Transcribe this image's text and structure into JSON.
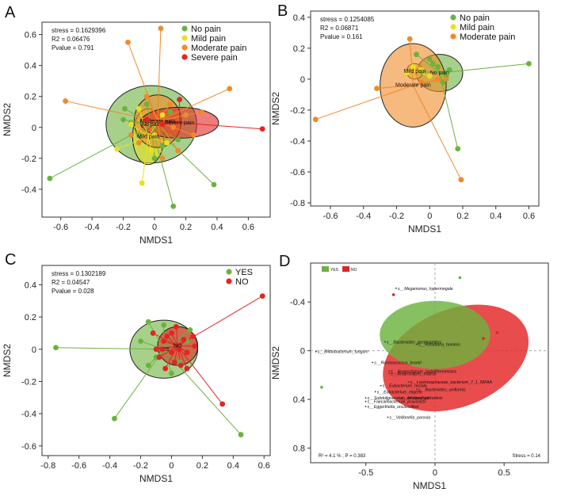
{
  "panels": {
    "A": {
      "letter": "A",
      "xlabel": "NMDS1",
      "ylabel": "NMDS2",
      "xticks": [
        -0.6,
        -0.4,
        -0.2,
        0.0,
        0.2,
        0.4,
        0.6
      ],
      "yticks": [
        -0.4,
        -0.2,
        0.0,
        0.2,
        0.4,
        0.6
      ],
      "xlim": [
        -0.72,
        0.74
      ],
      "ylim": [
        -0.58,
        0.68
      ],
      "stats": [
        "stress = 0.1629396",
        "R2 = 0.06476",
        "Pvalue = 0.791"
      ],
      "groups": [
        {
          "name": "No pain",
          "color": "#6cb23e",
          "center": [
            -0.02,
            0.02
          ],
          "ellipse": {
            "rx": 0.29,
            "ry": 0.25,
            "rot": 0
          },
          "points": [
            [
              -0.67,
              -0.33
            ],
            [
              0.12,
              -0.51
            ],
            [
              0.38,
              -0.37
            ],
            [
              -0.19,
              0.12
            ],
            [
              -0.15,
              0.03
            ],
            [
              -0.1,
              -0.05
            ],
            [
              0.05,
              -0.12
            ],
            [
              0.1,
              0.1
            ],
            [
              -0.05,
              0.15
            ],
            [
              0.15,
              -0.08
            ],
            [
              -0.2,
              0.05
            ],
            [
              0.0,
              -0.2
            ]
          ]
        },
        {
          "name": "Mild pain",
          "color": "#e8e020",
          "center": [
            -0.04,
            -0.06
          ],
          "ellipse": {
            "rx": 0.1,
            "ry": 0.18,
            "rot": 0
          },
          "points": [
            [
              -0.08,
              -0.36
            ],
            [
              -0.24,
              -0.14
            ],
            [
              -0.15,
              0.02
            ],
            [
              -0.1,
              0.12
            ],
            [
              0.0,
              -0.05
            ],
            [
              0.05,
              0.08
            ],
            [
              -0.02,
              -0.15
            ],
            [
              0.08,
              -0.1
            ]
          ]
        },
        {
          "name": "Moderate pain",
          "color": "#f08a28",
          "center": [
            0.02,
            0.04
          ],
          "ellipse": {
            "rx": 0.15,
            "ry": 0.17,
            "rot": 0
          },
          "points": [
            [
              -0.57,
              0.17
            ],
            [
              -0.17,
              0.55
            ],
            [
              0.04,
              0.64
            ],
            [
              0.48,
              0.25
            ],
            [
              -0.1,
              -0.1
            ],
            [
              0.1,
              0.15
            ],
            [
              0.2,
              0.08
            ],
            [
              0.15,
              -0.15
            ],
            [
              -0.05,
              0.2
            ],
            [
              0.25,
              -0.05
            ],
            [
              0.05,
              -0.2
            ],
            [
              -0.15,
              -0.05
            ],
            [
              0.12,
              0.0
            ],
            [
              0.3,
              0.1
            ]
          ]
        },
        {
          "name": "Severe pain",
          "color": "#e32424",
          "center": [
            0.16,
            0.03
          ],
          "ellipse": {
            "rx": 0.25,
            "ry": 0.1,
            "rot": 0
          },
          "points": [
            [
              0.69,
              -0.01
            ],
            [
              0.16,
              0.18
            ],
            [
              0.05,
              0.02
            ],
            [
              -0.05,
              0.05
            ]
          ]
        }
      ]
    },
    "B": {
      "letter": "B",
      "xlabel": "NMDS1",
      "ylabel": "NMDS2",
      "xticks": [
        -0.6,
        -0.4,
        -0.2,
        0.0,
        0.2,
        0.4,
        0.6
      ],
      "yticks": [
        -0.8,
        -0.6,
        -0.4,
        -0.2,
        0.0,
        0.2,
        0.4
      ],
      "xlim": [
        -0.72,
        0.66
      ],
      "ylim": [
        -0.82,
        0.44
      ],
      "stats": [
        "stress = 0.1254085",
        "R2 = 0.06871",
        "Pvalue = 0.161"
      ],
      "groups": [
        {
          "name": "No pain",
          "color": "#6cb23e",
          "center": [
            0.06,
            0.04
          ],
          "ellipse": {
            "rx": 0.14,
            "ry": 0.12,
            "rot": 0
          },
          "points": [
            [
              0.6,
              0.1
            ],
            [
              0.17,
              -0.45
            ],
            [
              -0.08,
              0.16
            ],
            [
              0.0,
              0.13
            ],
            [
              0.05,
              0.08
            ],
            [
              0.1,
              0.02
            ],
            [
              0.12,
              0.06
            ],
            [
              -0.05,
              0.05
            ],
            [
              0.08,
              -0.02
            ],
            [
              0.02,
              0.1
            ]
          ]
        },
        {
          "name": "Mild pain",
          "color": "#e8e020",
          "center": [
            -0.09,
            0.05
          ],
          "ellipse": {
            "rx": 0.05,
            "ry": 0.05,
            "rot": 0
          },
          "points": [
            [
              -0.14,
              0.04
            ],
            [
              -0.05,
              0.06
            ],
            [
              -0.1,
              0.08
            ],
            [
              0.0,
              0.02
            ]
          ]
        },
        {
          "name": "Moderate pain",
          "color": "#f08a28",
          "center": [
            -0.1,
            -0.04
          ],
          "ellipse": {
            "rx": 0.2,
            "ry": 0.27,
            "rot": 0
          },
          "points": [
            [
              -0.69,
              -0.26
            ],
            [
              0.19,
              -0.65
            ],
            [
              -0.12,
              0.26
            ],
            [
              -0.32,
              -0.06
            ],
            [
              0.05,
              0.0
            ],
            [
              0.1,
              0.0
            ],
            [
              -0.05,
              -0.02
            ]
          ]
        }
      ]
    },
    "C": {
      "letter": "C",
      "xlabel": "NMDS1",
      "ylabel": "NMDS2",
      "xticks": [
        -0.8,
        -0.6,
        -0.4,
        -0.2,
        0.0,
        0.2,
        0.4,
        0.6
      ],
      "yticks": [
        -0.6,
        -0.4,
        -0.2,
        0.0,
        0.2,
        0.4
      ],
      "xlim": [
        -0.84,
        0.64
      ],
      "ylim": [
        -0.66,
        0.52
      ],
      "stats": [
        "stress = 0.1302189",
        "R2 = 0.04547",
        "Pvalue = 0.028"
      ],
      "groups": [
        {
          "name": "YES",
          "color": "#6cb23e",
          "center": [
            -0.05,
            0.0
          ],
          "ellipse": {
            "rx": 0.22,
            "ry": 0.18,
            "rot": 0
          },
          "points": [
            [
              -0.75,
              0.01
            ],
            [
              -0.37,
              -0.43
            ],
            [
              0.45,
              -0.53
            ],
            [
              -0.15,
              0.17
            ],
            [
              -0.2,
              0.05
            ],
            [
              -0.1,
              -0.05
            ],
            [
              0.0,
              0.1
            ],
            [
              0.05,
              -0.08
            ],
            [
              -0.15,
              -0.1
            ],
            [
              0.1,
              0.05
            ],
            [
              -0.05,
              0.15
            ],
            [
              0.0,
              -0.15
            ],
            [
              0.12,
              0.12
            ]
          ]
        },
        {
          "name": "NO",
          "color": "#e32424",
          "center": [
            0.04,
            0.02
          ],
          "ellipse": {
            "rx": 0.13,
            "ry": 0.12,
            "rot": 0
          },
          "points": [
            [
              0.59,
              0.33
            ],
            [
              0.33,
              -0.34
            ],
            [
              -0.05,
              0.05
            ],
            [
              0.0,
              -0.02
            ],
            [
              0.05,
              0.0
            ],
            [
              -0.03,
              0.08
            ],
            [
              0.08,
              0.06
            ],
            [
              0.02,
              -0.08
            ],
            [
              -0.08,
              -0.05
            ],
            [
              0.1,
              -0.02
            ],
            [
              0.0,
              0.1
            ],
            [
              -0.1,
              0.0
            ],
            [
              0.06,
              -0.1
            ],
            [
              0.14,
              0.08
            ],
            [
              -0.04,
              -0.12
            ],
            [
              0.15,
              0.02
            ],
            [
              -0.12,
              0.1
            ],
            [
              0.03,
              0.14
            ],
            [
              0.1,
              -0.12
            ],
            [
              -0.06,
              0.0
            ]
          ]
        }
      ]
    },
    "D": {
      "letter": "D",
      "xlabel": "NMDS1",
      "ylabel": "NMDS2",
      "xticks": [
        -0.5,
        0.0,
        0.5
      ],
      "yticks": [
        -0.4,
        0.0,
        0.4,
        0.8
      ],
      "xlim": [
        -0.9,
        0.82
      ],
      "ylim": [
        -0.72,
        0.92
      ],
      "legend": [
        {
          "name": "YES",
          "color": "#6cb23e"
        },
        {
          "name": "NO",
          "color": "#e32424"
        }
      ],
      "stress": "Stress = 0.14",
      "r2": "R² = 4.1 % ; P = 0.383",
      "ellipses": [
        {
          "name": "NO",
          "color": "#e32424",
          "center": [
            0.15,
            0.06
          ],
          "rx": 0.55,
          "ry": 0.4,
          "rot": -22
        },
        {
          "name": "YES",
          "color": "#6cb23e",
          "center": [
            0.0,
            -0.13
          ],
          "rx": 0.4,
          "ry": 0.28,
          "rot": 0
        }
      ],
      "species": [
        {
          "label": "s__Megamonas_hypermegale",
          "x": -0.27,
          "y": -0.5
        },
        {
          "label": "s__Bacteroides_pectinophilus",
          "x": -0.35,
          "y": -0.06
        },
        {
          "label": "s__Roseburia_hominis",
          "x": -0.12,
          "y": -0.04
        },
        {
          "label": "s__Bifidobacterium_longum",
          "x": -0.85,
          "y": 0.02
        },
        {
          "label": "s__Ruminococcus_bromii",
          "x": -0.44,
          "y": 0.11
        },
        {
          "label": "s__Anaerotignum_lactatifermentans",
          "x": -0.32,
          "y": 0.18
        },
        {
          "label": "s__Anaerostipes_hadrus",
          "x": -0.32,
          "y": 0.2
        },
        {
          "label": "s__Lachnospiraceae_bacterium_7_1_58FAA",
          "x": -0.18,
          "y": 0.27
        },
        {
          "label": "s__Eubacterium_rectale",
          "x": -0.38,
          "y": 0.3
        },
        {
          "label": "s__Bacteroides_uniformis",
          "x": -0.12,
          "y": 0.33
        },
        {
          "label": "s__Eubacterium_eligens",
          "x": -0.42,
          "y": 0.35
        },
        {
          "label": "s__Subdoligranulum_unclassified",
          "x": -0.49,
          "y": 0.4
        },
        {
          "label": "s__Alistipes_putredinis",
          "x": -0.25,
          "y": 0.4
        },
        {
          "label": "s__Faecalibacterium_prausnitzii",
          "x": -0.49,
          "y": 0.43
        },
        {
          "label": "s__Eggerthella_unclassified",
          "x": -0.49,
          "y": 0.47
        },
        {
          "label": "s__Veillonella_parvula",
          "x": -0.33,
          "y": 0.56
        }
      ],
      "points": [
        {
          "color": "#e32424",
          "x": -0.3,
          "y": -0.46
        },
        {
          "color": "#6cb23e",
          "x": 0.18,
          "y": -0.6
        },
        {
          "color": "#6cb23e",
          "x": -0.82,
          "y": 0.3
        },
        {
          "color": "#e32424",
          "x": 0.45,
          "y": -0.15
        },
        {
          "color": "#e32424",
          "x": 0.35,
          "y": -0.1
        },
        {
          "color": "#6cb23e",
          "x": 0.2,
          "y": -0.25
        }
      ]
    }
  },
  "chart_data": [
    {
      "type": "scatter",
      "title": "A",
      "xlabel": "NMDS1",
      "ylabel": "NMDS2",
      "xlim": [
        -0.72,
        0.74
      ],
      "ylim": [
        -0.58,
        0.68
      ],
      "legend": [
        "No pain",
        "Mild pain",
        "Moderate pain",
        "Severe pain"
      ]
    },
    {
      "type": "scatter",
      "title": "B",
      "xlabel": "NMDS1",
      "ylabel": "NMDS2",
      "xlim": [
        -0.72,
        0.66
      ],
      "ylim": [
        -0.82,
        0.44
      ],
      "legend": [
        "No pain",
        "Mild pain",
        "Moderate pain"
      ]
    },
    {
      "type": "scatter",
      "title": "C",
      "xlabel": "NMDS1",
      "ylabel": "NMDS2",
      "xlim": [
        -0.84,
        0.64
      ],
      "ylim": [
        -0.66,
        0.52
      ],
      "legend": [
        "YES",
        "NO"
      ]
    },
    {
      "type": "scatter",
      "title": "D",
      "xlabel": "NMDS1",
      "ylabel": "NMDS2",
      "xlim": [
        -0.9,
        0.82
      ],
      "ylim": [
        -0.72,
        0.92
      ],
      "legend": [
        "YES",
        "NO"
      ]
    }
  ]
}
